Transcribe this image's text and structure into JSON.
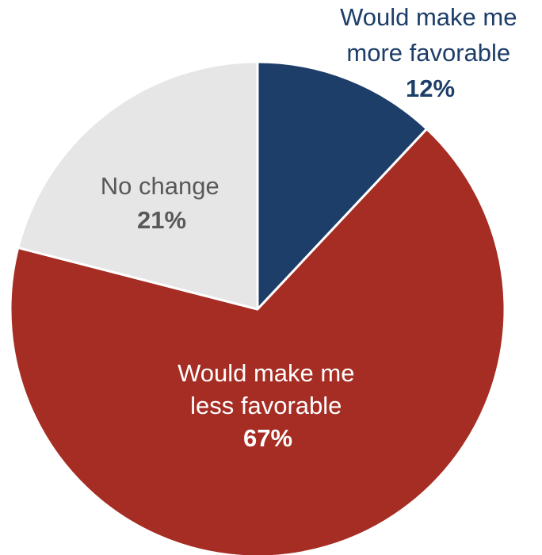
{
  "chart_data": {
    "type": "pie",
    "slices": [
      {
        "label_lines": [
          "Would make me",
          "more favorable"
        ],
        "value_text": "12%",
        "value": 12,
        "color": "#1d3e69",
        "text_color": "#1d3e69"
      },
      {
        "label_lines": [
          "Would make me",
          "less favorable"
        ],
        "value_text": "67%",
        "value": 67,
        "color": "#a52d23",
        "text_color": "#ffffff"
      },
      {
        "label_lines": [
          "No change"
        ],
        "value_text": "21%",
        "value": 21,
        "color": "#e6e6e6",
        "text_color": "#595959"
      }
    ]
  }
}
